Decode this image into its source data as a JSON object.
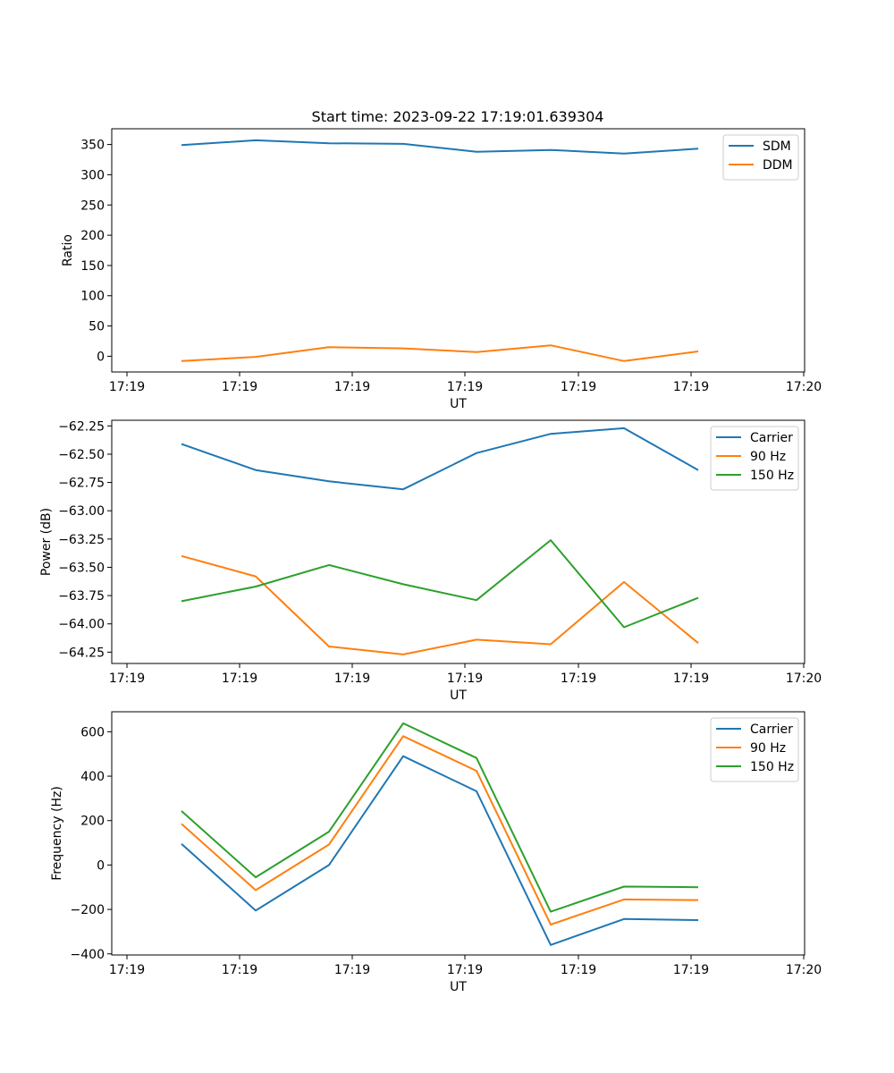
{
  "chart_data": [
    {
      "type": "line",
      "title": "Start time: 2023-09-22 17:19:01.639304",
      "xlabel": "UT",
      "ylabel": "Ratio",
      "x_tick_labels": [
        "17:19",
        "17:19",
        "17:19",
        "17:19",
        "17:19",
        "17:19",
        "17:20"
      ],
      "y_ticks": [
        0,
        50,
        100,
        150,
        200,
        250,
        300,
        350
      ],
      "ylim": [
        -26,
        376
      ],
      "legend_position": "top-right",
      "series": [
        {
          "name": "SDM",
          "color": "#1f77b4",
          "values": [
            349,
            357,
            352,
            351,
            338,
            341,
            335,
            343
          ]
        },
        {
          "name": "DDM",
          "color": "#ff7f0e",
          "values": [
            -8,
            -1,
            15,
            13,
            7,
            18,
            -8,
            8
          ]
        }
      ]
    },
    {
      "type": "line",
      "title": "",
      "xlabel": "UT",
      "ylabel": "Power (dB)",
      "x_tick_labels": [
        "17:19",
        "17:19",
        "17:19",
        "17:19",
        "17:19",
        "17:19",
        "17:20"
      ],
      "y_ticks": [
        -64.25,
        -64.0,
        -63.75,
        -63.5,
        -63.25,
        -63.0,
        -62.75,
        -62.5,
        -62.25
      ],
      "y_tick_labels": [
        "−64.25",
        "−64.00",
        "−63.75",
        "−63.50",
        "−63.25",
        "−63.00",
        "−62.75",
        "−62.50",
        "−62.25"
      ],
      "ylim": [
        -64.35,
        -62.2
      ],
      "legend_position": "top-right",
      "series": [
        {
          "name": "Carrier",
          "color": "#1f77b4",
          "values": [
            -62.41,
            -62.64,
            -62.74,
            -62.81,
            -62.49,
            -62.32,
            -62.27,
            -62.64
          ]
        },
        {
          "name": "90 Hz",
          "color": "#ff7f0e",
          "values": [
            -63.4,
            -63.58,
            -64.2,
            -64.27,
            -64.14,
            -64.18,
            -63.63,
            -64.17
          ]
        },
        {
          "name": "150 Hz",
          "color": "#2ca02c",
          "values": [
            -63.8,
            -63.67,
            -63.48,
            -63.65,
            -63.79,
            -63.26,
            -64.03,
            -63.77
          ]
        }
      ]
    },
    {
      "type": "line",
      "title": "",
      "xlabel": "UT",
      "ylabel": "Frequency (Hz)",
      "x_tick_labels": [
        "17:19",
        "17:19",
        "17:19",
        "17:19",
        "17:19",
        "17:19",
        "17:20"
      ],
      "y_ticks": [
        -400,
        -200,
        0,
        200,
        400,
        600
      ],
      "y_tick_labels": [
        "−400",
        "−200",
        "0",
        "200",
        "400",
        "600"
      ],
      "ylim": [
        -405,
        690
      ],
      "legend_position": "top-right",
      "series": [
        {
          "name": "Carrier",
          "color": "#1f77b4",
          "values": [
            95,
            -205,
            0,
            490,
            332,
            -360,
            -243,
            -248
          ]
        },
        {
          "name": "90 Hz",
          "color": "#ff7f0e",
          "values": [
            185,
            -113,
            92,
            580,
            424,
            -268,
            -155,
            -158
          ]
        },
        {
          "name": "150 Hz",
          "color": "#2ca02c",
          "values": [
            243,
            -55,
            150,
            638,
            482,
            -210,
            -97,
            -100
          ]
        }
      ]
    }
  ]
}
